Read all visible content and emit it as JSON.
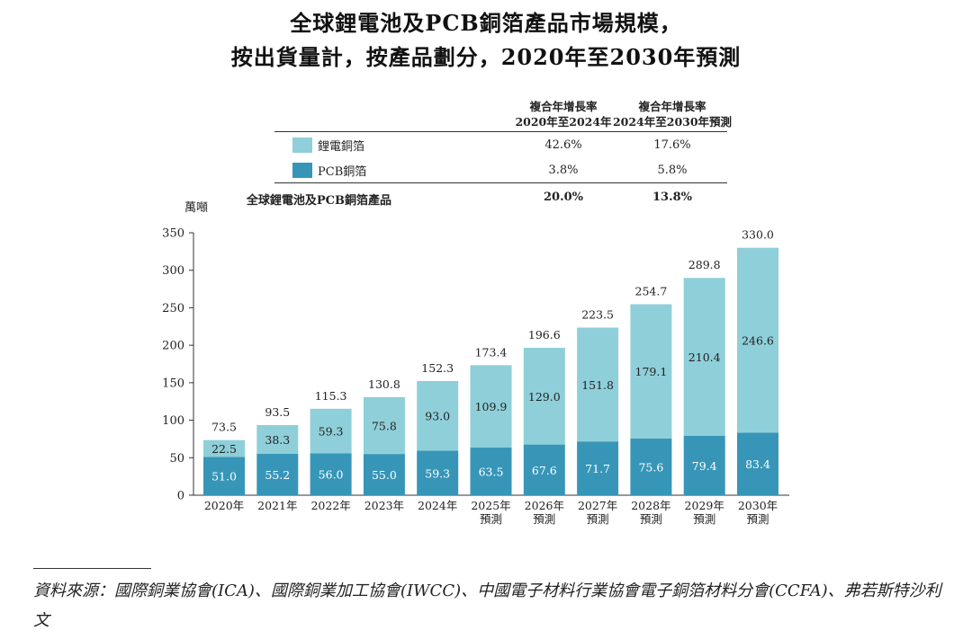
{
  "title": {
    "line1": "全球鋰電池及PCB銅箔產品市場規模，",
    "line2": "按出貨量計，按產品劃分，2020年至2030年預測"
  },
  "cagr_table": {
    "col1_header": [
      "複合年增長率",
      "2020年至2024年"
    ],
    "col2_header": [
      "複合年增長率",
      "2024年至2030年預測"
    ],
    "rows": [
      {
        "label": "鋰電銅箔",
        "col1": "42.6%",
        "col2": "17.6%",
        "color": "#8fcfd9"
      },
      {
        "label": "PCB銅箔",
        "col1": "3.8%",
        "col2": "5.8%",
        "color": "#3796b8"
      }
    ],
    "total": {
      "label": "全球鋰電池及PCB銅箔產品",
      "col1": "20.0%",
      "col2": "13.8%"
    }
  },
  "chart_data": {
    "type": "bar",
    "stacked": true,
    "unit": "萬噸",
    "categories": [
      [
        "2020年"
      ],
      [
        "2021年"
      ],
      [
        "2022年"
      ],
      [
        "2023年"
      ],
      [
        "2024年"
      ],
      [
        "2025年",
        "預測"
      ],
      [
        "2026年",
        "預測"
      ],
      [
        "2027年",
        "預測"
      ],
      [
        "2028年",
        "預測"
      ],
      [
        "2029年",
        "預測"
      ],
      [
        "2030年",
        "預測"
      ]
    ],
    "series": [
      {
        "name": "PCB銅箔",
        "color": "#3796b8",
        "values": [
          51.0,
          55.2,
          56.0,
          55.0,
          59.3,
          63.5,
          67.6,
          71.7,
          75.6,
          79.4,
          83.4
        ],
        "labels": [
          "51.0",
          "55.2",
          "56.0",
          "55.0",
          "59.3",
          "63.5",
          "67.6",
          "71.7",
          "75.6",
          "79.4",
          "83.4"
        ]
      },
      {
        "name": "鋰電銅箔",
        "color": "#8fcfd9",
        "values": [
          22.5,
          38.3,
          59.3,
          75.8,
          93.0,
          109.9,
          129.0,
          151.8,
          179.1,
          210.4,
          246.6
        ],
        "labels": [
          "22.5",
          "38.3",
          "59.3",
          "75.8",
          "93.0",
          "109.9",
          "129.0",
          "151.8",
          "179.1",
          "210.4",
          "246.6"
        ]
      }
    ],
    "totals": [
      73.5,
      93.5,
      115.3,
      130.8,
      152.3,
      173.4,
      196.6,
      223.5,
      254.7,
      289.8,
      330.0
    ],
    "total_labels": [
      "73.5",
      "93.5",
      "115.3",
      "130.8",
      "152.3",
      "173.4",
      "196.6",
      "223.5",
      "254.7",
      "289.8",
      "330.0"
    ],
    "ylim": [
      0,
      350
    ],
    "yticks": [
      0,
      50,
      100,
      150,
      200,
      250,
      300,
      350
    ]
  },
  "source": "資料來源：國際銅業協會(ICA)、國際銅業加工協會(IWCC)、中國電子材料行業協會電子銅箔材料分會(CCFA)、弗若斯特沙利文"
}
